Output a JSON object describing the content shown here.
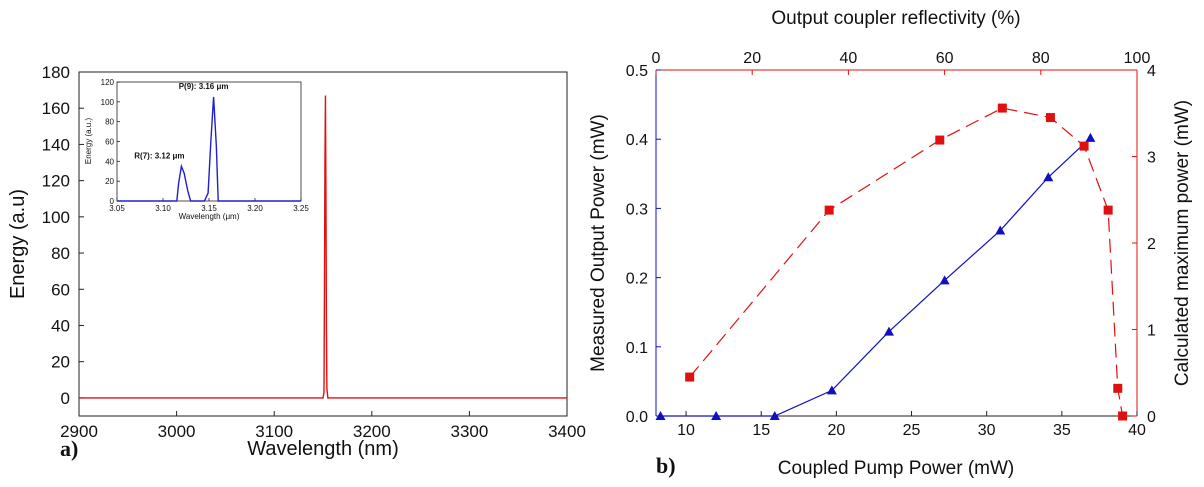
{
  "chart_data": [
    {
      "type": "line",
      "panel_label": "a)",
      "xlabel": "Wavelength (nm)",
      "ylabel": "Energy (a.u)",
      "xlim": [
        2900,
        3400
      ],
      "ylim": [
        -10,
        180
      ],
      "xticks": [
        2900,
        3000,
        3100,
        3200,
        3300,
        3400
      ],
      "yticks": [
        0,
        20,
        40,
        60,
        80,
        100,
        120,
        140,
        160,
        180
      ],
      "color": "#e01010",
      "series": [
        {
          "x": [
            2900,
            3150,
            3151,
            3151.5,
            3152,
            3152.5,
            3153,
            3153.5,
            3154,
            3155,
            3400
          ],
          "values": [
            0,
            0,
            3,
            60,
            130,
            167,
            115,
            40,
            5,
            0,
            0
          ]
        }
      ],
      "inset": {
        "xlabel": "Wavelength (μm)",
        "ylabel": "Energy (a.u.)",
        "xlim": [
          3.05,
          3.25
        ],
        "ylim": [
          0,
          120
        ],
        "xticks": [
          "3.05",
          "3.10",
          "3.15",
          "3.20",
          "3.25"
        ],
        "yticks": [
          "0",
          "20",
          "40",
          "60",
          "80",
          "100",
          "120"
        ],
        "color": "#2020d0",
        "series": [
          {
            "x": [
              3.05,
              3.115,
              3.117,
              3.12,
              3.123,
              3.127,
              3.13,
              3.145,
              3.149,
              3.152,
              3.155,
              3.158,
              3.16,
              3.25
            ],
            "values": [
              0,
              0,
              18,
              35,
              28,
              10,
              0,
              0,
              8,
              60,
              105,
              55,
              0,
              0
            ]
          }
        ],
        "annotations": [
          {
            "text": "R(7): 3.12 μm",
            "x": 3.12,
            "y": 35
          },
          {
            "text": "P(9): 3.16 μm",
            "x": 3.155,
            "y": 105
          }
        ]
      }
    },
    {
      "type": "line",
      "panel_label": "b)",
      "xlabel": "Coupled Pump Power (mW)",
      "ylabel": "Measured Output Power (mW)",
      "y2label": "Calculated maximum power (mW)",
      "x2label": "Output coupler reflectivity (%)",
      "xlim": [
        8,
        40
      ],
      "ylim": [
        0,
        0.5
      ],
      "y2lim": [
        0,
        4
      ],
      "x2lim": [
        0,
        100
      ],
      "xticks": [
        10,
        15,
        20,
        25,
        30,
        35,
        40
      ],
      "yticks": [
        "0.0",
        "0.1",
        "0.2",
        "0.3",
        "0.4",
        "0.5"
      ],
      "y2ticks": [
        0,
        1,
        2,
        3,
        4
      ],
      "x2ticks": [
        0,
        20,
        40,
        60,
        80,
        100
      ],
      "series": [
        {
          "axis": "bottom-left",
          "marker": "triangle",
          "style": "solid",
          "color": "#1010c0",
          "x": [
            8.3,
            12.0,
            15.9,
            19.7,
            23.5,
            27.2,
            30.9,
            34.1,
            36.9
          ],
          "values": [
            0.0,
            0.0,
            0.0,
            0.037,
            0.122,
            0.196,
            0.268,
            0.345,
            0.402
          ]
        },
        {
          "axis": "top-right",
          "marker": "square",
          "style": "dashed",
          "color": "#e01010",
          "x": [
            7,
            36,
            59,
            72,
            82,
            89,
            94,
            96,
            97
          ],
          "values": [
            0.45,
            2.38,
            3.19,
            3.56,
            3.45,
            3.12,
            2.38,
            0.32,
            0.0
          ]
        }
      ]
    }
  ]
}
